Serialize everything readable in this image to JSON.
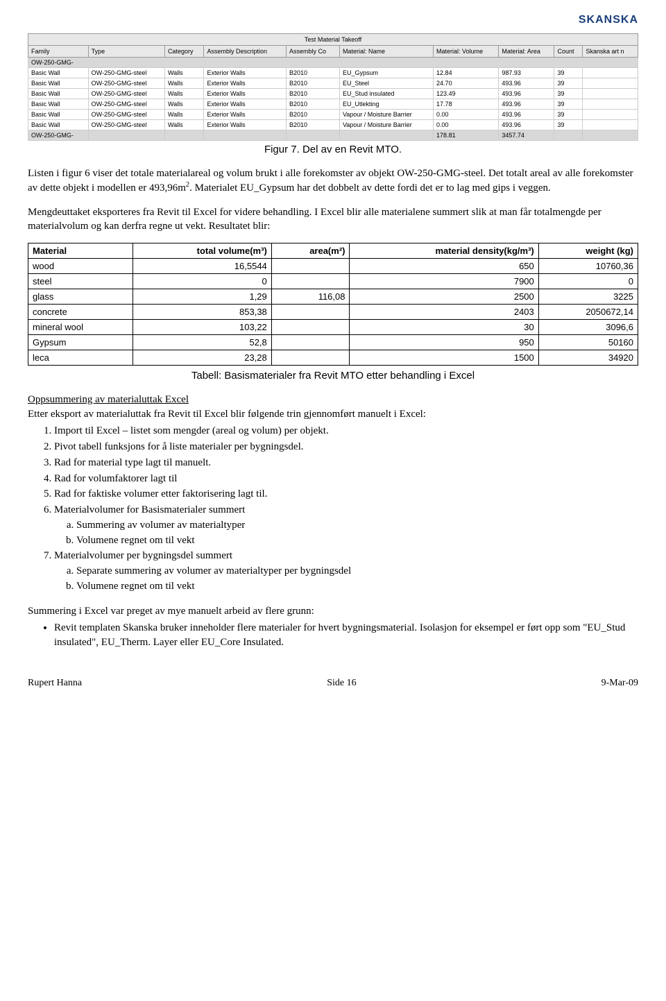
{
  "logo_text": "SKANSKA",
  "revit_table": {
    "title": "Test Material Takeoff",
    "columns": [
      "Family",
      "Type",
      "Category",
      "Assembly Description",
      "Assembly Co",
      "Material: Name",
      "Material: Volume",
      "Material: Area",
      "Count",
      "Skanska art n"
    ],
    "group_label": "OW-250-GMG-",
    "rows": [
      [
        "Basic Wall",
        "OW-250-GMG-steel",
        "Walls",
        "Exterior Walls",
        "B2010",
        "EU_Gypsum",
        "12.84",
        "987.93",
        "39",
        ""
      ],
      [
        "Basic Wall",
        "OW-250-GMG-steel",
        "Walls",
        "Exterior Walls",
        "B2010",
        "EU_Steel",
        "24.70",
        "493.96",
        "39",
        ""
      ],
      [
        "Basic Wall",
        "OW-250-GMG-steel",
        "Walls",
        "Exterior Walls",
        "B2010",
        "EU_Stud insulated",
        "123.49",
        "493.96",
        "39",
        ""
      ],
      [
        "Basic Wall",
        "OW-250-GMG-steel",
        "Walls",
        "Exterior Walls",
        "B2010",
        "EU_Utlekting",
        "17.78",
        "493.96",
        "39",
        ""
      ],
      [
        "Basic Wall",
        "OW-250-GMG-steel",
        "Walls",
        "Exterior Walls",
        "B2010",
        "Vapour / Moisture Barrier",
        "0.00",
        "493.96",
        "39",
        ""
      ],
      [
        "Basic Wall",
        "OW-250-GMG-steel",
        "Walls",
        "Exterior Walls",
        "B2010",
        "Vapour / Moisture Barrier",
        "0.00",
        "493.96",
        "39",
        ""
      ]
    ],
    "summary_label": "OW-250-GMG-",
    "summary_volume": "178.81",
    "summary_area": "3457.74"
  },
  "figure_caption": "Figur 7. Del av en Revit MTO.",
  "para1": "Listen i figur 6 viser det totale materialareal og volum brukt i alle forekomster av objekt OW-250-GMG-steel. Det totalt areal av alle forekomster av dette objekt i modellen er 493,96m",
  "para1_sup": "2",
  "para1_tail": ". Materialet EU_Gypsum har det dobbelt av dette fordi det er to lag med gips i veggen.",
  "para2": "Mengdeuttaket eksporteres fra Revit til Excel for videre behandling. I Excel blir alle materialene summert slik at man får totalmengde per materialvolum og kan derfra regne ut vekt. Resultatet blir:",
  "material_table": {
    "columns": [
      "Material",
      "total volume(m³)",
      "area(m²)",
      "material density(kg/m³)",
      "weight (kg)"
    ],
    "rows": [
      [
        "wood",
        "16,5544",
        "",
        "650",
        "10760,36"
      ],
      [
        "steel",
        "0",
        "",
        "7900",
        "0"
      ],
      [
        "glass",
        "1,29",
        "116,08",
        "2500",
        "3225"
      ],
      [
        "concrete",
        "853,38",
        "",
        "2403",
        "2050672,14"
      ],
      [
        "mineral wool",
        "103,22",
        "",
        "30",
        "3096,6"
      ],
      [
        "Gypsum",
        "52,8",
        "",
        "950",
        "50160"
      ],
      [
        "leca",
        "23,28",
        "",
        "1500",
        "34920"
      ]
    ]
  },
  "table_caption": "Tabell: Basismaterialer fra Revit MTO etter behandling i Excel",
  "section_heading": "Oppsummering av materialuttak Excel",
  "para3": "Etter eksport av materialuttak fra Revit til Excel blir følgende trin gjennomført manuelt i Excel:",
  "list": [
    "Import til Excel – listet som mengder (areal og volum) per objekt.",
    "Pivot tabell funksjons for å liste materialer per bygningsdel.",
    "Rad for material type lagt til manuelt.",
    "Rad for volumfaktorer lagt til",
    "Rad for faktiske volumer etter faktorisering lagt til.",
    "Materialvolumer for Basismaterialer summert",
    "Materialvolumer per bygningsdel summert"
  ],
  "sub6": [
    "Summering av volumer av materialtyper",
    "Volumene regnet om til vekt"
  ],
  "sub7": [
    "Separate summering av volumer av materialtyper per bygningsdel",
    "Volumene regnet om til vekt"
  ],
  "para4": "Summering i Excel var preget av mye manuelt arbeid av flere grunn:",
  "bullet1": "Revit templaten Skanska bruker inneholder flere materialer for hvert bygningsmaterial. Isolasjon for eksempel er ført opp som \"EU_Stud insulated\", EU_Therm. Layer eller EU_Core Insulated.",
  "footer": {
    "left": "Rupert Hanna",
    "center": "Side 16",
    "right": "9-Mar-09"
  }
}
